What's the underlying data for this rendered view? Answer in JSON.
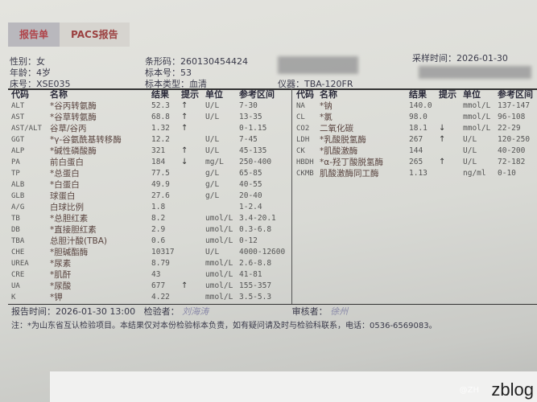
{
  "tabs": [
    "报告单",
    "PACS报告"
  ],
  "header": {
    "gender": "性别：女",
    "age": "年龄：4岁",
    "bed": "床号：XSE035",
    "barcode": "条形码：260130454424",
    "specimen_no": "标本号：53",
    "specimen_type": "标本类型：血清",
    "instrument": "仪器：TBA-120FR",
    "sampling_time": "采样时间：2026-01-30"
  },
  "columns": [
    "代码",
    "名称",
    "结果",
    "提示",
    "单位",
    "参考区间"
  ],
  "left_rows": [
    [
      "ALT",
      "*谷丙转氨酶",
      "52.3",
      "↑",
      "U/L",
      "7-30"
    ],
    [
      "AST",
      "*谷草转氨酶",
      "68.8",
      "↑",
      "U/L",
      "13-35"
    ],
    [
      "AST/ALT",
      "谷草/谷丙",
      "1.32",
      "↑",
      "",
      "0-1.15"
    ],
    [
      "GGT",
      "*γ-谷氨酰基转移酶",
      "12.2",
      "",
      "U/L",
      "7-45"
    ],
    [
      "ALP",
      "*碱性磷酸酶",
      "321",
      "↑",
      "U/L",
      "45-135"
    ],
    [
      "PA",
      "前白蛋白",
      "184",
      "↓",
      "mg/L",
      "250-400"
    ],
    [
      "TP",
      "*总蛋白",
      "77.5",
      "",
      "g/L",
      "65-85"
    ],
    [
      "ALB",
      "*白蛋白",
      "49.9",
      "",
      "g/L",
      "40-55"
    ],
    [
      "GLB",
      "球蛋白",
      "27.6",
      "",
      "g/L",
      "20-40"
    ],
    [
      "A/G",
      "白球比例",
      "1.8",
      "",
      "",
      "1-2.4"
    ],
    [
      "TB",
      "*总胆红素",
      "8.2",
      "",
      "umol/L",
      "3.4-20.1"
    ],
    [
      "DB",
      "*直接胆红素",
      "2.9",
      "",
      "umol/L",
      "0.3-6.8"
    ],
    [
      "TBA",
      "总胆汁酸(TBA)",
      "0.6",
      "",
      "umol/L",
      "0-12"
    ],
    [
      "CHE",
      "*胆碱酯酶",
      "10317",
      "",
      "U/L",
      "4000-12600"
    ],
    [
      "UREA",
      "*尿素",
      "8.79",
      "",
      "mmol/L",
      "2.6-8.8"
    ],
    [
      "CRE",
      "*肌酐",
      "43",
      "",
      "umol/L",
      "41-81"
    ],
    [
      "UA",
      "*尿酸",
      "677",
      "↑",
      "umol/L",
      "155-357"
    ],
    [
      "K",
      "*钾",
      "4.22",
      "",
      "mmol/L",
      "3.5-5.3"
    ]
  ],
  "right_rows": [
    [
      "NA",
      "*钠",
      "140.0",
      "",
      "mmol/L",
      "137-147"
    ],
    [
      "CL",
      "*氯",
      "98.0",
      "",
      "mmol/L",
      "96-108"
    ],
    [
      "CO2",
      "二氧化碳",
      "18.1",
      "↓",
      "mmol/L",
      "22-29"
    ],
    [
      "LDH",
      "*乳酸脱氢酶",
      "267",
      "↑",
      "U/L",
      "120-250"
    ],
    [
      "CK",
      "*肌酸激酶",
      "144",
      "",
      "U/L",
      "40-200"
    ],
    [
      "HBDH",
      "*α-羟丁酸脱氢酶",
      "265",
      "↑",
      "U/L",
      "72-182"
    ],
    [
      "CKMB",
      "肌酸激酶同工酶",
      "1.13",
      "",
      "ng/ml",
      "0-10"
    ]
  ],
  "footer": {
    "report_time": "报告时间：2026-01-30 13:00",
    "tester_label": "检验者：",
    "tester_sig": "刘海涛",
    "reviewer_label": "审核者：",
    "reviewer_sig": "徐州",
    "note": "注：*为山东省互认检验项目。本结果仅对本份检验标本负责，如有疑问请及时与检验科联系，电话：0536-6569083。"
  },
  "watermark": {
    "text": "zblog",
    "sub": "@ZH"
  }
}
